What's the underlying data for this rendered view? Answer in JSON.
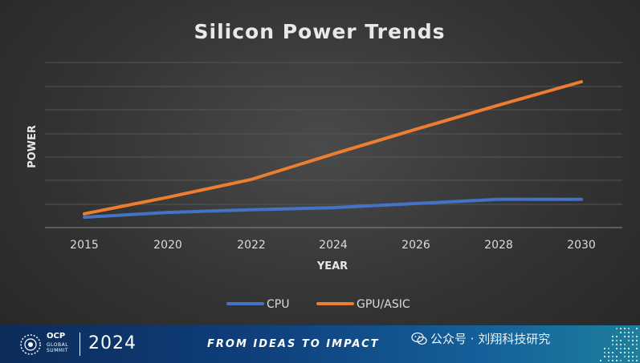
{
  "chart_data": {
    "type": "line",
    "title": "Silicon Power Trends",
    "xlabel": "YEAR",
    "ylabel": "POWER",
    "categories": [
      "2015",
      "2020",
      "2022",
      "2024",
      "2026",
      "2028",
      "2030"
    ],
    "series": [
      {
        "name": "CPU",
        "color": "#4472c4",
        "values": [
          1.0,
          1.7,
          2.1,
          2.4,
          3.0,
          3.6,
          3.6
        ]
      },
      {
        "name": "GPU/ASIC",
        "color": "#ed7d31",
        "values": [
          1.5,
          3.9,
          6.5,
          10.2,
          13.8,
          17.3,
          20.7
        ]
      }
    ],
    "ylim": [
      -0.5,
      23.5
    ],
    "grid": true,
    "legend": "bottom-center"
  },
  "footer": {
    "org": "OCP",
    "org_line1": "GLOBAL",
    "org_line2": "SUMMIT",
    "year": "2024",
    "tagline": "FROM IDEAS TO IMPACT",
    "watermark": "公众号 · 刘翔科技研究"
  }
}
